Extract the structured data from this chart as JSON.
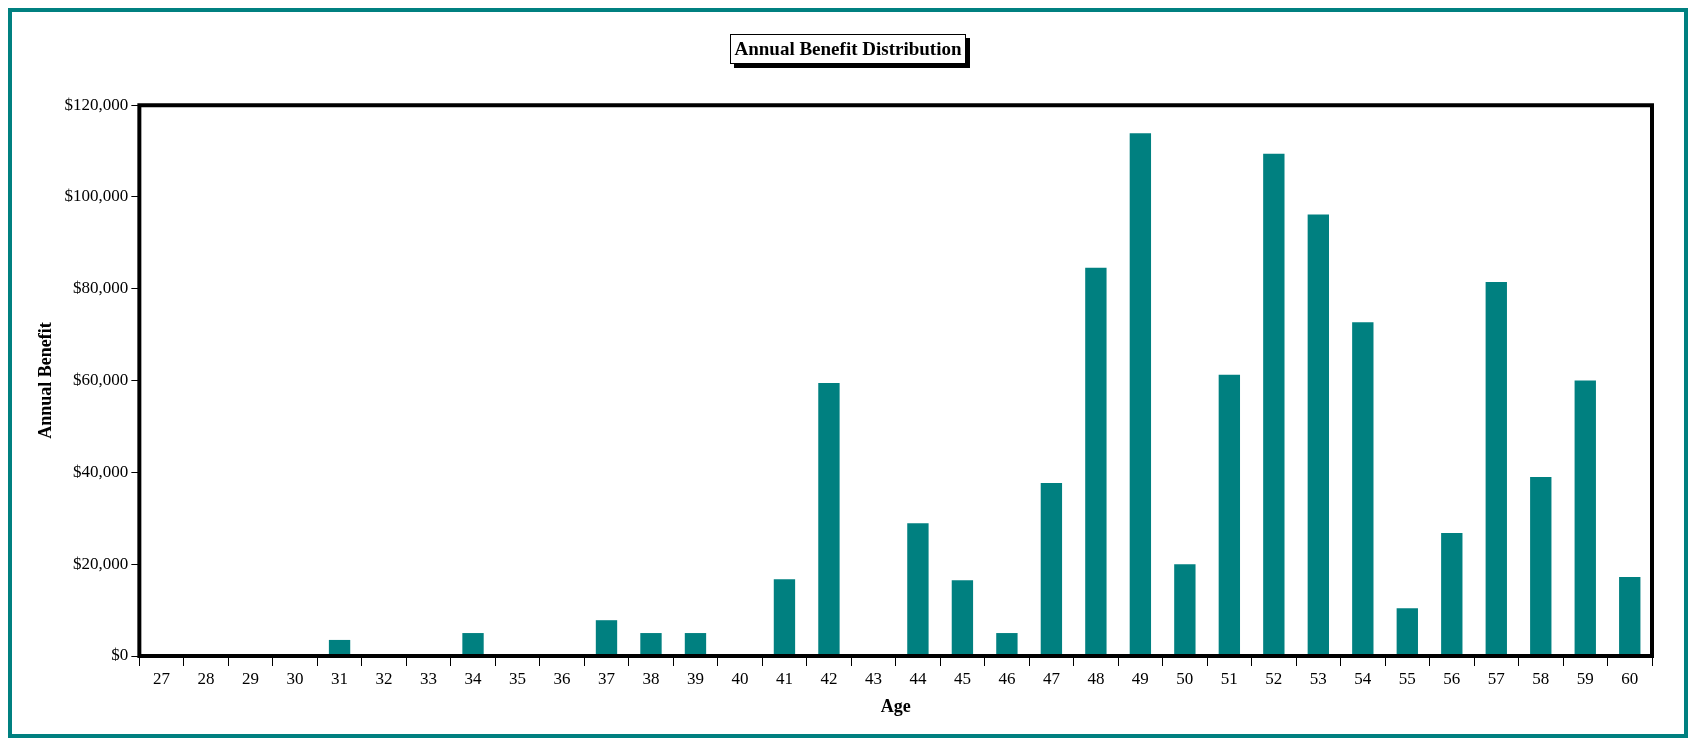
{
  "chart_data": {
    "type": "bar",
    "title": "Annual Benefit Distribution",
    "xlabel": "Age",
    "ylabel": "Annual Benefit",
    "categories": [
      "27",
      "28",
      "29",
      "30",
      "31",
      "32",
      "33",
      "34",
      "35",
      "36",
      "37",
      "38",
      "39",
      "40",
      "41",
      "42",
      "43",
      "44",
      "45",
      "46",
      "47",
      "48",
      "49",
      "50",
      "51",
      "52",
      "53",
      "54",
      "55",
      "56",
      "57",
      "58",
      "59",
      "60"
    ],
    "values": [
      0,
      0,
      0,
      0,
      3500,
      0,
      0,
      5000,
      0,
      0,
      7800,
      5000,
      5000,
      0,
      16700,
      59500,
      0,
      28900,
      16500,
      5000,
      37700,
      84600,
      113900,
      20000,
      61300,
      109400,
      96200,
      72700,
      10400,
      26800,
      81500,
      39000,
      60000,
      17200
    ],
    "color": "#008080",
    "ylim": [
      0,
      120000
    ],
    "yticks": [
      {
        "value": 0,
        "label": "$0"
      },
      {
        "value": 20000,
        "label": "$20,000"
      },
      {
        "value": 40000,
        "label": "$40,000"
      },
      {
        "value": 60000,
        "label": "$60,000"
      },
      {
        "value": 80000,
        "label": "$80,000"
      },
      {
        "value": 100000,
        "label": "$100,000"
      },
      {
        "value": 120000,
        "label": "$120,000"
      }
    ],
    "grid": false,
    "legend": false
  }
}
